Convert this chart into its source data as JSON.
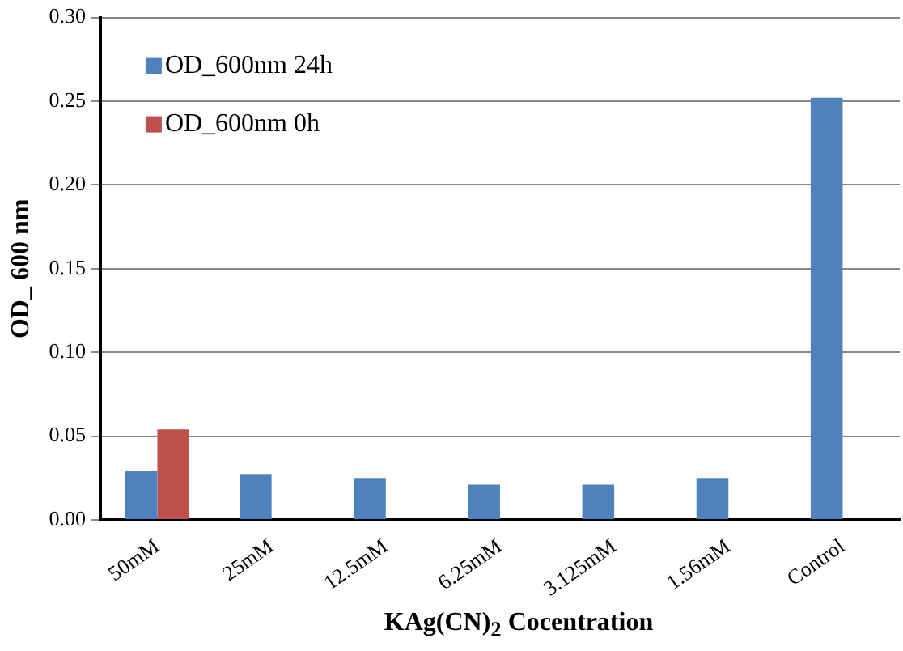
{
  "chart_data": {
    "type": "bar",
    "xlabel": "KAg(CN)$_{2}$ Cocentration",
    "ylabel": "OD_ 600 nm",
    "categories": [
      "50mM",
      "25mM",
      "12.5mM",
      "6.25mM",
      "3.125mM",
      "1.56mM",
      "Control"
    ],
    "series": [
      {
        "name": "OD_600nm 24h",
        "color": "#4f81bd",
        "values": [
          0.029,
          0.027,
          0.025,
          0.021,
          0.021,
          0.025,
          0.252
        ]
      },
      {
        "name": "OD_600nm 0h",
        "color": "#c0504d",
        "values": [
          0.054,
          null,
          null,
          null,
          null,
          null,
          null
        ]
      }
    ],
    "ylim": [
      0,
      0.3
    ],
    "yticks": [
      {
        "value": 0,
        "label": "0.00"
      },
      {
        "value": 0.05,
        "label": "0.05"
      },
      {
        "value": 0.1,
        "label": "0.10"
      },
      {
        "value": 0.15,
        "label": "0.15"
      },
      {
        "value": 0.2,
        "label": "0.20"
      },
      {
        "value": 0.25,
        "label": "0.25"
      },
      {
        "value": 0.3,
        "label": "0.30"
      }
    ],
    "grid": "y",
    "legend": "top left"
  }
}
